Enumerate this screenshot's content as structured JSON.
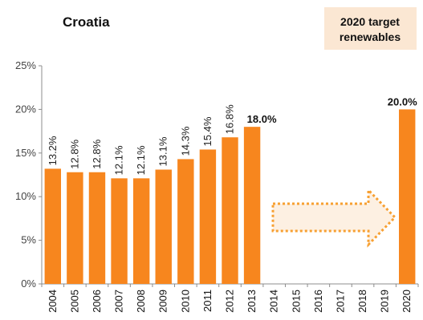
{
  "chart_data": {
    "type": "bar",
    "title": "Croatia",
    "target_box": {
      "line1": "2020 target",
      "line2": "renewables"
    },
    "categories": [
      "2004",
      "2005",
      "2006",
      "2007",
      "2008",
      "2009",
      "2010",
      "2011",
      "2012",
      "2013",
      "2014",
      "2015",
      "2016",
      "2017",
      "2018",
      "2019",
      "2020"
    ],
    "values": [
      13.2,
      12.8,
      12.8,
      12.1,
      12.1,
      13.1,
      14.3,
      15.4,
      16.8,
      18.0,
      null,
      null,
      null,
      null,
      null,
      null,
      20.0
    ],
    "value_labels": [
      "13.2%",
      "12.8%",
      "12.8%",
      "12.1%",
      "12.1%",
      "13.1%",
      "14.3%",
      "15.4%",
      "16.8%",
      "18.0%",
      "",
      "",
      "",
      "",
      "",
      "",
      "20.0%"
    ],
    "y_ticks": [
      {
        "value": 0,
        "label": "0%"
      },
      {
        "value": 5,
        "label": "5%"
      },
      {
        "value": 10,
        "label": "10%"
      },
      {
        "value": 15,
        "label": "15%"
      },
      {
        "value": 20,
        "label": "20%"
      },
      {
        "value": 25,
        "label": "25%"
      }
    ],
    "ylim": [
      0,
      25
    ],
    "grid": false,
    "colors": {
      "bar": "#f7861e",
      "arrow_stroke": "#f7a032",
      "arrow_fill": "#fdf0e2",
      "target_box": "#fbe7d3"
    }
  }
}
